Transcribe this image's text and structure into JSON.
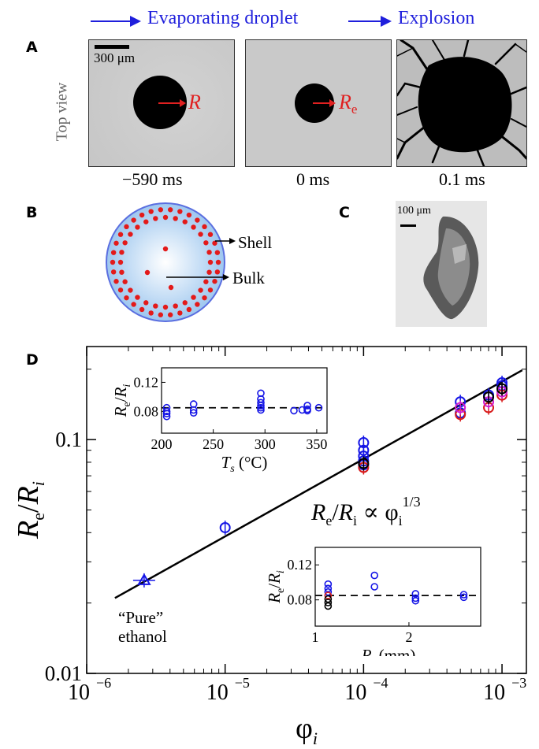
{
  "panel_a": {
    "label": "A",
    "header_left": "Evaporating droplet",
    "header_right": "Explosion",
    "side_label": "Top view",
    "scale_bar": "300 μm",
    "frames": [
      {
        "radius_symbol": "R",
        "time": "−590 ms"
      },
      {
        "radius_symbol": "R",
        "radius_subscript": "e",
        "time": "0 ms"
      },
      {
        "time": "0.1 ms"
      }
    ]
  },
  "panel_b": {
    "label": "B",
    "shell_label": "Shell",
    "bulk_label": "Bulk"
  },
  "panel_c": {
    "label": "C",
    "scale_bar": "100 μm"
  },
  "panel_d": {
    "label": "D",
    "fit_label": "R_e/R_i ∝ φ_i^{1/3}",
    "annotation_line1": "“Pure”",
    "annotation_line2": "ethanol"
  },
  "colors": {
    "blue_markers": "#1515e6",
    "red_markers": "#d81b1b",
    "magenta_markers": "#d11fd1",
    "black": "#000000",
    "header_blue": "#1f1fdc"
  },
  "chart_data": [
    {
      "type": "scatter",
      "id": "main",
      "xlabel": "φ_i",
      "ylabel": "R_e/R_i",
      "xscale": "log",
      "yscale": "log",
      "xlim": [
        1e-06,
        0.0015
      ],
      "ylim": [
        0.01,
        0.25
      ],
      "x_ticks": [
        {
          "v": 1e-06,
          "label": "10",
          "exp": "−6"
        },
        {
          "v": 1e-05,
          "label": "10",
          "exp": "−5"
        },
        {
          "v": 0.0001,
          "label": "10",
          "exp": "−4"
        },
        {
          "v": 0.001,
          "label": "10",
          "exp": "−3"
        }
      ],
      "y_ticks": [
        {
          "v": 0.01,
          "label": "0.01"
        },
        {
          "v": 0.1,
          "label": "0.1"
        }
      ],
      "fit_line": {
        "x": [
          1.6e-06,
          0.0014
        ],
        "y": [
          0.021,
          0.198
        ]
      },
      "series": [
        {
          "color": "blue",
          "marker": "triangle",
          "points": [
            {
              "x": 2.6e-06,
              "y": 0.025
            }
          ]
        },
        {
          "color": "blue",
          "marker": "circle",
          "points": [
            {
              "x": 1e-05,
              "y": 0.042
            },
            {
              "x": 0.0001,
              "y": 0.09
            },
            {
              "x": 0.0001,
              "y": 0.085
            },
            {
              "x": 0.0001,
              "y": 0.081
            },
            {
              "x": 0.0001,
              "y": 0.097
            },
            {
              "x": 0.0001,
              "y": 0.078
            },
            {
              "x": 0.0005,
              "y": 0.145
            },
            {
              "x": 0.0005,
              "y": 0.13
            },
            {
              "x": 0.0008,
              "y": 0.155
            },
            {
              "x": 0.001,
              "y": 0.17
            },
            {
              "x": 0.001,
              "y": 0.175
            }
          ]
        },
        {
          "color": "red",
          "marker": "circle",
          "points": [
            {
              "x": 0.0001,
              "y": 0.076
            },
            {
              "x": 0.0005,
              "y": 0.128
            },
            {
              "x": 0.0008,
              "y": 0.137
            },
            {
              "x": 0.001,
              "y": 0.155
            }
          ]
        },
        {
          "color": "magenta",
          "marker": "circle",
          "points": [
            {
              "x": 0.0005,
              "y": 0.137
            },
            {
              "x": 0.0008,
              "y": 0.145
            },
            {
              "x": 0.001,
              "y": 0.16
            }
          ]
        },
        {
          "color": "black",
          "marker": "circle",
          "points": [
            {
              "x": 0.0001,
              "y": 0.079
            },
            {
              "x": 0.0008,
              "y": 0.152
            },
            {
              "x": 0.001,
              "y": 0.165
            }
          ]
        }
      ]
    },
    {
      "type": "scatter",
      "id": "inset_ts",
      "xlabel": "T_s (°C)",
      "ylabel": "R_e/R_i",
      "xlim": [
        200,
        360
      ],
      "ylim": [
        0.05,
        0.14
      ],
      "x_ticks": [
        200,
        250,
        300,
        350
      ],
      "y_ticks": [
        0.08,
        0.12
      ],
      "dashed_level": 0.085,
      "points": [
        {
          "x": 205,
          "y": 0.085
        },
        {
          "x": 205,
          "y": 0.08
        },
        {
          "x": 205,
          "y": 0.077
        },
        {
          "x": 205,
          "y": 0.073
        },
        {
          "x": 231,
          "y": 0.09
        },
        {
          "x": 231,
          "y": 0.082
        },
        {
          "x": 231,
          "y": 0.078
        },
        {
          "x": 296,
          "y": 0.105
        },
        {
          "x": 296,
          "y": 0.097
        },
        {
          "x": 296,
          "y": 0.092
        },
        {
          "x": 296,
          "y": 0.088
        },
        {
          "x": 296,
          "y": 0.085
        },
        {
          "x": 296,
          "y": 0.082
        },
        {
          "x": 328,
          "y": 0.081
        },
        {
          "x": 336,
          "y": 0.082
        },
        {
          "x": 341,
          "y": 0.088
        },
        {
          "x": 341,
          "y": 0.083
        },
        {
          "x": 341,
          "y": 0.081
        },
        {
          "x": 352,
          "y": 0.085
        }
      ]
    },
    {
      "type": "scatter",
      "id": "inset_ri",
      "xlabel": "R_i (mm)",
      "ylabel": "R_e/R_i",
      "xscale": "log",
      "xlim": [
        1.0,
        3.4
      ],
      "ylim": [
        0.05,
        0.14
      ],
      "x_ticks": [
        {
          "v": 1,
          "label": "1"
        },
        {
          "v": 2,
          "label": "2"
        }
      ],
      "y_ticks": [
        0.08,
        0.12
      ],
      "dashed_level": 0.085,
      "points": [
        {
          "x": 1.1,
          "y": 0.098,
          "c": "blue"
        },
        {
          "x": 1.1,
          "y": 0.093,
          "c": "blue"
        },
        {
          "x": 1.1,
          "y": 0.089,
          "c": "blue"
        },
        {
          "x": 1.1,
          "y": 0.085,
          "c": "red"
        },
        {
          "x": 1.1,
          "y": 0.081,
          "c": "black"
        },
        {
          "x": 1.1,
          "y": 0.077,
          "c": "black"
        },
        {
          "x": 1.1,
          "y": 0.073,
          "c": "black"
        },
        {
          "x": 1.55,
          "y": 0.108,
          "c": "blue"
        },
        {
          "x": 1.55,
          "y": 0.095,
          "c": "blue"
        },
        {
          "x": 2.1,
          "y": 0.087,
          "c": "blue"
        },
        {
          "x": 2.1,
          "y": 0.082,
          "c": "blue"
        },
        {
          "x": 2.1,
          "y": 0.079,
          "c": "blue"
        },
        {
          "x": 3.0,
          "y": 0.086,
          "c": "blue"
        },
        {
          "x": 3.0,
          "y": 0.083,
          "c": "blue"
        }
      ]
    }
  ]
}
